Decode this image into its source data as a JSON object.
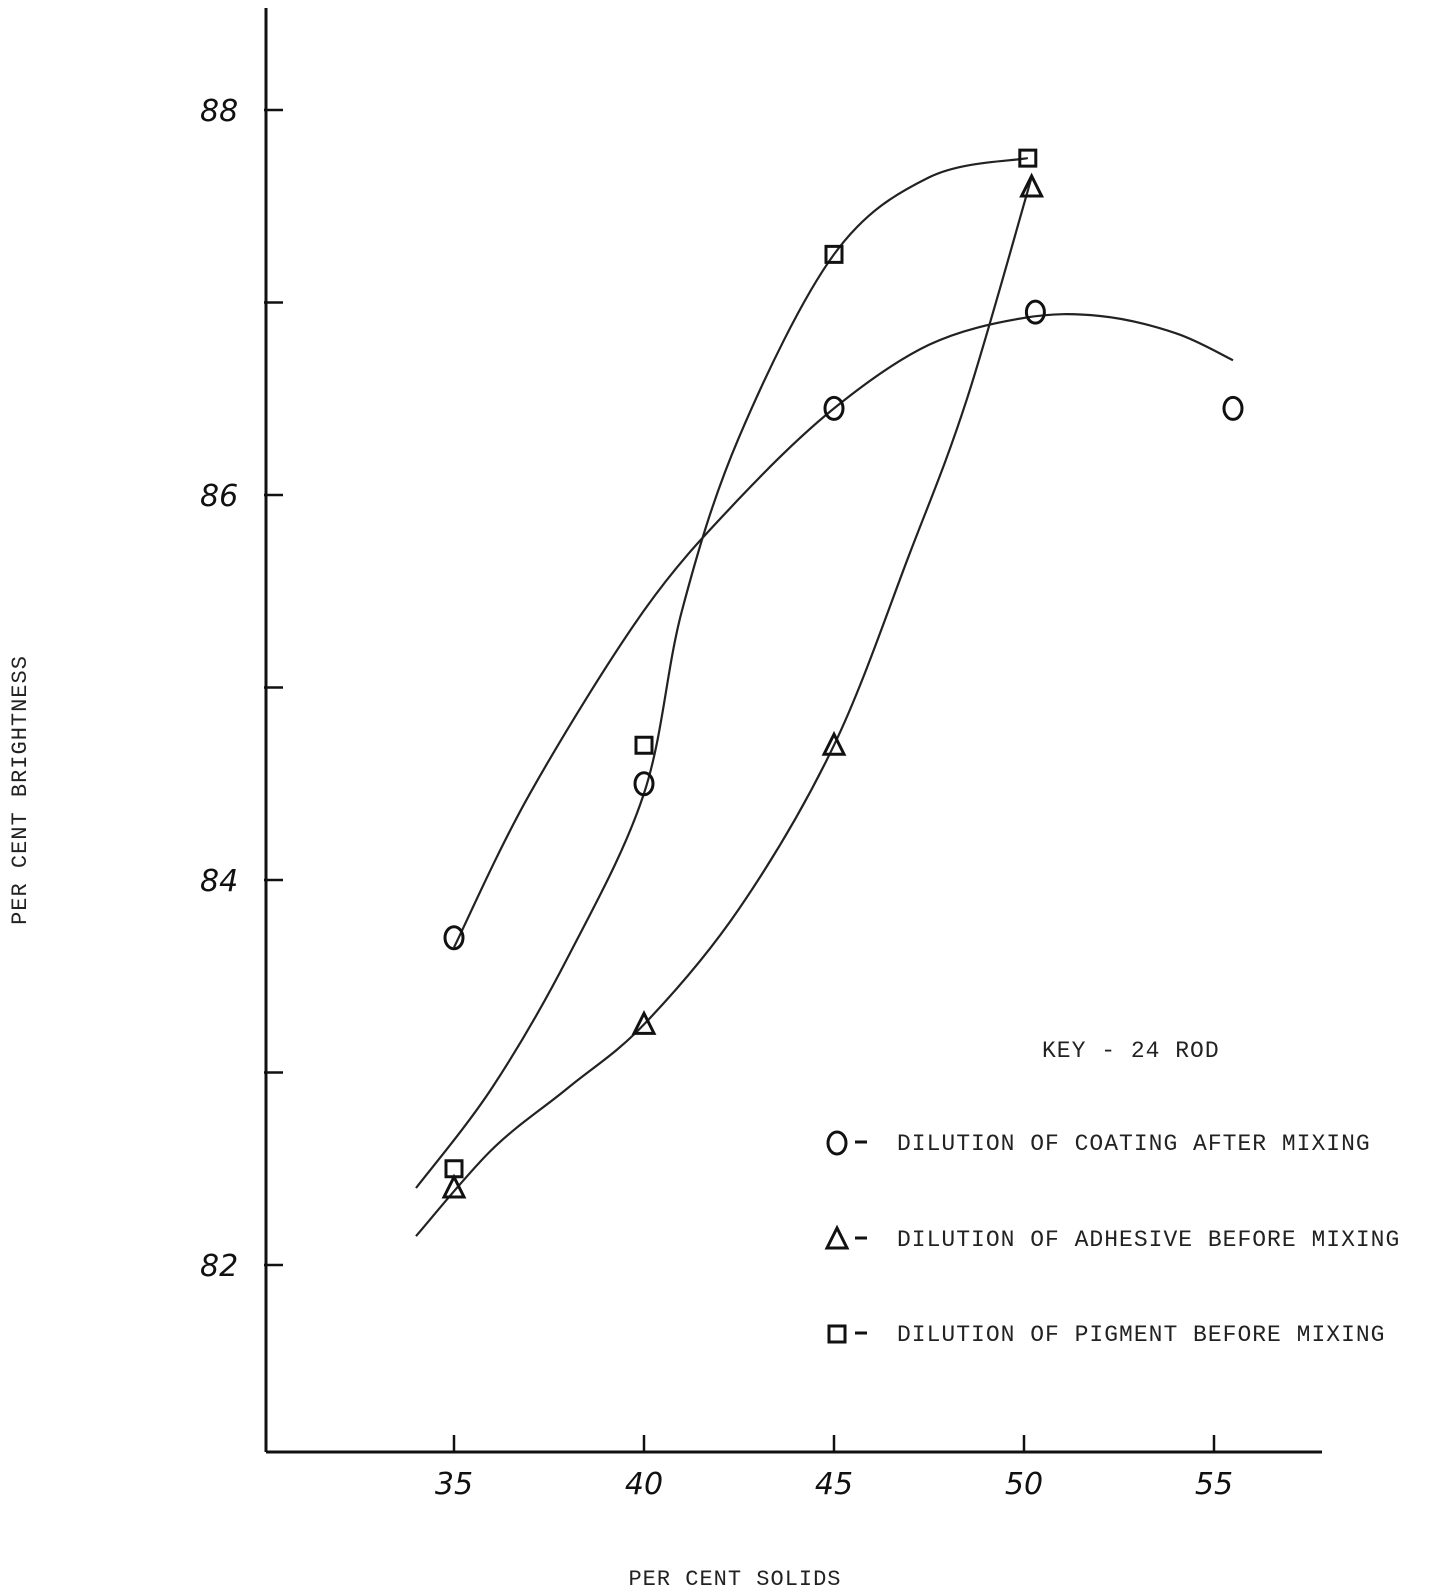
{
  "chart_data": {
    "type": "line",
    "xlabel": "PER CENT SOLIDS",
    "ylabel": "PER CENT BRIGHTNESS",
    "xlim": [
      30,
      58
    ],
    "ylim": [
      81,
      89.5
    ],
    "x_ticks": [
      35,
      40,
      45,
      50,
      55
    ],
    "x_tick_labels": [
      "35",
      "40",
      "45",
      "50",
      "55"
    ],
    "y_ticks": [
      82,
      83,
      84,
      85,
      86,
      87,
      88
    ],
    "y_tick_labels": [
      "82",
      "",
      "84",
      "",
      "86",
      "",
      "88"
    ],
    "legend": {
      "title": "KEY - 24 ROD",
      "entries": [
        {
          "marker": "circle",
          "label": "DILUTION OF COATING AFTER MIXING"
        },
        {
          "marker": "triangle",
          "label": "DILUTION OF ADHESIVE BEFORE MIXING"
        },
        {
          "marker": "square",
          "label": "DILUTION OF PIGMENT BEFORE MIXING"
        }
      ]
    },
    "series": [
      {
        "marker": "circle",
        "points": [
          [
            35,
            83.7
          ],
          [
            40,
            84.5
          ],
          [
            45,
            86.45
          ],
          [
            50.3,
            86.95
          ],
          [
            55.5,
            86.45
          ]
        ],
        "curve": [
          [
            35,
            83.65
          ],
          [
            37,
            84.45
          ],
          [
            40,
            85.4
          ],
          [
            42.5,
            85.98
          ],
          [
            45,
            86.45
          ],
          [
            47.5,
            86.78
          ],
          [
            50,
            86.92
          ],
          [
            52,
            86.93
          ],
          [
            54,
            86.84
          ],
          [
            55.5,
            86.7
          ]
        ]
      },
      {
        "marker": "triangle",
        "points": [
          [
            35,
            82.4
          ],
          [
            40,
            83.25
          ],
          [
            45,
            84.7
          ],
          [
            50.2,
            87.6
          ]
        ],
        "curve": [
          [
            34,
            82.15
          ],
          [
            36,
            82.6
          ],
          [
            38,
            82.92
          ],
          [
            40,
            83.25
          ],
          [
            42.5,
            83.85
          ],
          [
            45,
            84.7
          ],
          [
            47,
            85.7
          ],
          [
            48.5,
            86.5
          ],
          [
            50.2,
            87.65
          ]
        ]
      },
      {
        "marker": "square",
        "points": [
          [
            35,
            82.5
          ],
          [
            40,
            84.7
          ],
          [
            45,
            87.25
          ],
          [
            50.1,
            87.75
          ]
        ],
        "curve": [
          [
            34,
            82.4
          ],
          [
            36,
            82.92
          ],
          [
            38,
            83.6
          ],
          [
            40,
            84.45
          ],
          [
            41,
            85.4
          ],
          [
            42.5,
            86.3
          ],
          [
            45,
            87.25
          ],
          [
            47.5,
            87.65
          ],
          [
            50.1,
            87.75
          ]
        ]
      }
    ]
  }
}
